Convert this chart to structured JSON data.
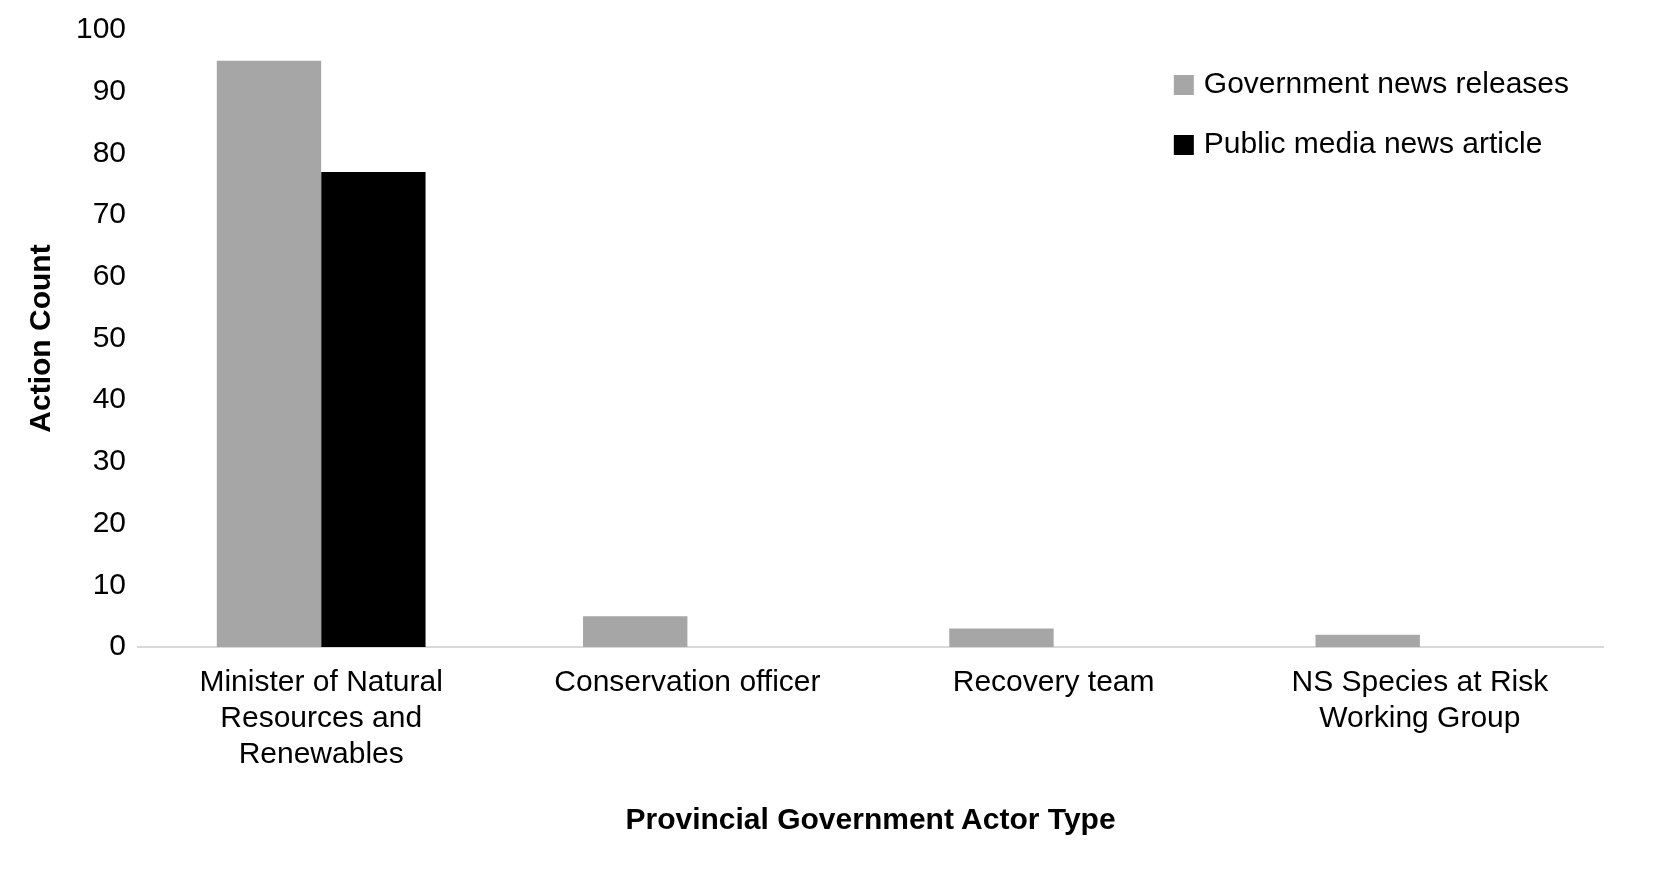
{
  "chart_data": {
    "type": "bar",
    "xlabel": "Provincial Government Actor Type",
    "ylabel": "Action Count",
    "categories": [
      "Minister of Natural Resources and Renewables",
      "Conservation officer",
      "Recovery team",
      "NS Species at Risk Working Group"
    ],
    "series": [
      {
        "name": "Government news releases",
        "color": "#a6a6a6",
        "values": [
          95,
          5,
          3,
          2
        ]
      },
      {
        "name": "Public media news article",
        "color": "#000000",
        "values": [
          77,
          0,
          0,
          0
        ]
      }
    ],
    "ylim": [
      0,
      100
    ],
    "yticks": [
      0,
      10,
      20,
      30,
      40,
      50,
      60,
      70,
      80,
      90,
      100
    ],
    "grid": false,
    "legend": "top right"
  }
}
